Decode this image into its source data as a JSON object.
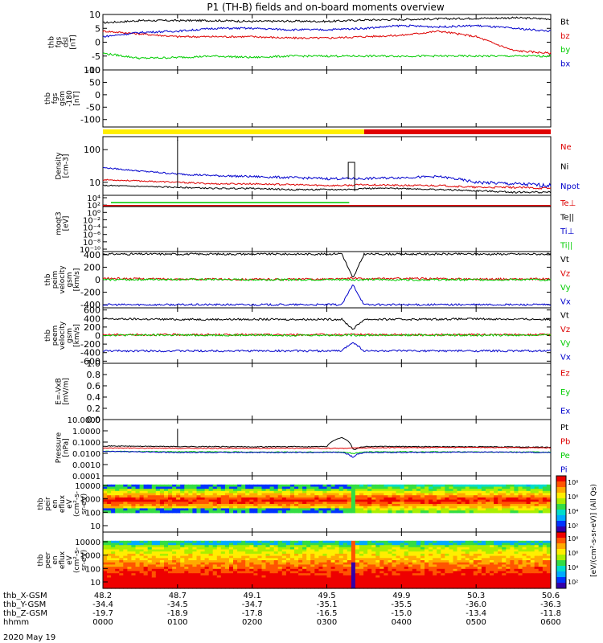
{
  "title": "P1 (TH-B) fields and on-board moments overview",
  "footer_date": "2020 May 19",
  "chart_data": [
    {
      "id": "fgs_dsl",
      "type": "line",
      "ylabel_lines": [
        "thb",
        "fgs",
        "dsl",
        "[nT]"
      ],
      "ylim": [
        -10,
        10
      ],
      "ticks": [
        10,
        5,
        0,
        -5,
        -10
      ],
      "x": [
        0,
        0.5,
        1,
        1.5,
        2,
        2.5,
        3,
        3.5,
        4,
        4.5,
        5,
        5.5,
        6
      ],
      "series": [
        {
          "name": "Bt",
          "color": "#000000",
          "values": [
            7,
            7.8,
            7.8,
            7.8,
            7.5,
            7.6,
            7.5,
            8,
            8.2,
            8.4,
            8.6,
            8.8,
            8.4
          ]
        },
        {
          "name": "bz",
          "color": "#dd0000",
          "values": [
            4,
            3,
            2,
            2,
            2,
            1.5,
            1.5,
            2,
            2.5,
            4,
            2,
            -3,
            -4
          ]
        },
        {
          "name": "by",
          "color": "#00cc00",
          "values": [
            -4,
            -5.8,
            -5.5,
            -5,
            -5.5,
            -5,
            -5,
            -5,
            -5,
            -5,
            -5,
            -5,
            -5
          ]
        },
        {
          "name": "bx",
          "color": "#0000cc",
          "values": [
            2,
            3.5,
            4,
            5,
            5,
            4.5,
            4.5,
            5,
            6,
            5.5,
            6,
            5,
            4
          ]
        }
      ]
    },
    {
      "id": "fgs_gsm",
      "type": "line",
      "ylabel_lines": [
        "thb",
        "fgs",
        "gsm",
        "-180",
        "[nT]"
      ],
      "ylim": [
        -130,
        100
      ],
      "ticks": [
        100,
        50,
        0,
        -50,
        -100
      ],
      "series": []
    },
    {
      "id": "mode_bar",
      "type": "bar",
      "segments": [
        {
          "from": "0000",
          "to": "0330",
          "color": "#ffee00"
        },
        {
          "from": "0330",
          "to": "0600",
          "color": "#e00000"
        }
      ]
    },
    {
      "id": "density",
      "type": "line",
      "log": true,
      "ylabel_lines": [
        "Density",
        "[cm-3]"
      ],
      "ylim": [
        4,
        250
      ],
      "ticks": [
        "100",
        "10"
      ],
      "x": [
        0,
        0.5,
        1,
        1.5,
        2,
        2.5,
        3,
        3.25,
        3.5,
        4,
        4.5,
        5,
        5.5,
        6
      ],
      "series": [
        {
          "name": "Ne",
          "color": "#dd0000",
          "values": [
            12,
            11,
            10,
            9,
            9,
            8.5,
            8,
            8,
            8.5,
            8,
            8,
            7,
            7,
            6.5
          ]
        },
        {
          "name": "Ni",
          "color": "#000000",
          "values": [
            8,
            7.5,
            7,
            6.5,
            6.5,
            6,
            6,
            6,
            6.5,
            6.5,
            6,
            5.5,
            5,
            5
          ]
        },
        {
          "name": "Npot",
          "color": "#0000cc",
          "values": [
            28,
            22,
            18,
            16,
            15,
            14,
            13,
            13,
            13,
            14,
            15,
            10,
            9,
            8
          ]
        }
      ],
      "spike": {
        "x": 1.0,
        "to": 200
      }
    },
    {
      "id": "moqt3",
      "type": "line",
      "log": true,
      "ylabel_lines": [
        "moqt3",
        "[eV]"
      ],
      "ticks": [
        "10⁴",
        "10²",
        "10⁰",
        "10⁻²",
        "10⁻⁴",
        "10⁻⁶",
        "10⁻⁸",
        "10⁻¹⁰"
      ],
      "series": [
        {
          "name": "Te⊥",
          "color": "#dd0000"
        },
        {
          "name": "Te||",
          "color": "#000000"
        },
        {
          "name": "Ti⊥",
          "color": "#0000cc"
        },
        {
          "name": "Ti||",
          "color": "#00cc00"
        }
      ]
    },
    {
      "id": "peim_velocity",
      "type": "line",
      "ylabel_lines": [
        "thb",
        "peim",
        "velocity",
        "gsm",
        "[km/s]"
      ],
      "ylim": [
        -450,
        450
      ],
      "ticks": [
        400,
        200,
        0,
        -200,
        -400
      ],
      "x": [
        0,
        1,
        2,
        3,
        3.2,
        3.35,
        3.5,
        4,
        5,
        6
      ],
      "series": [
        {
          "name": "Vt",
          "color": "#000000",
          "values": [
            410,
            410,
            410,
            410,
            420,
            20,
            410,
            410,
            410,
            410
          ]
        },
        {
          "name": "Vz",
          "color": "#dd0000",
          "values": [
            20,
            10,
            5,
            10,
            10,
            30,
            10,
            20,
            10,
            10
          ]
        },
        {
          "name": "Vy",
          "color": "#00cc00",
          "values": [
            0,
            5,
            0,
            0,
            0,
            0,
            0,
            0,
            0,
            0
          ]
        },
        {
          "name": "Vx",
          "color": "#0000cc",
          "values": [
            -400,
            -400,
            -400,
            -400,
            -400,
            -80,
            -400,
            -400,
            -400,
            -400
          ]
        }
      ]
    },
    {
      "id": "peem_velocity",
      "type": "line",
      "ylabel_lines": [
        "thb",
        "peem",
        "velocity",
        "gsm",
        "[km/s]"
      ],
      "ylim": [
        -650,
        650
      ],
      "ticks": [
        600,
        400,
        200,
        0,
        -200,
        -400,
        -600
      ],
      "x": [
        0,
        1,
        2,
        3,
        3.2,
        3.35,
        3.5,
        4,
        5,
        6
      ],
      "series": [
        {
          "name": "Vt",
          "color": "#000000",
          "values": [
            390,
            380,
            380,
            380,
            380,
            150,
            380,
            380,
            390,
            380
          ]
        },
        {
          "name": "Vz",
          "color": "#dd0000",
          "values": [
            20,
            20,
            20,
            20,
            20,
            30,
            20,
            20,
            20,
            20
          ]
        },
        {
          "name": "Vy",
          "color": "#00cc00",
          "values": [
            10,
            10,
            10,
            10,
            10,
            10,
            10,
            10,
            10,
            10
          ]
        },
        {
          "name": "Vx",
          "color": "#0000cc",
          "values": [
            -360,
            -360,
            -360,
            -360,
            -360,
            -150,
            -360,
            -360,
            -360,
            -360
          ]
        }
      ]
    },
    {
      "id": "efield",
      "type": "line",
      "ylabel_lines": [
        "E=-VxB",
        "[mV/m]"
      ],
      "ylim": [
        0,
        1
      ],
      "ticks": [
        "1.0",
        "0.8",
        "0.6",
        "0.4",
        "0.2",
        "0.0"
      ],
      "series": [
        {
          "name": "Ez",
          "color": "#dd0000"
        },
        {
          "name": "Ey",
          "color": "#00cc00"
        },
        {
          "name": "Ex",
          "color": "#0000cc"
        }
      ]
    },
    {
      "id": "pressure",
      "type": "line",
      "log": true,
      "ylabel_lines": [
        "Pressure",
        "[nPa]"
      ],
      "ticks": [
        "10.0000",
        "1.0000",
        "0.1000",
        "0.0100",
        "0.0010",
        "0.0001"
      ],
      "x": [
        0,
        1,
        2,
        3,
        3.2,
        3.35,
        3.5,
        4,
        5,
        6
      ],
      "series": [
        {
          "name": "Pt",
          "color": "#000000",
          "values": [
            0.045,
            0.04,
            0.038,
            0.04,
            0.25,
            0.02,
            0.04,
            0.04,
            0.038,
            0.035
          ]
        },
        {
          "name": "Pb",
          "color": "#dd0000",
          "values": [
            0.03,
            0.028,
            0.028,
            0.028,
            0.028,
            0.03,
            0.03,
            0.032,
            0.034,
            0.03
          ]
        },
        {
          "name": "Pe",
          "color": "#00cc00",
          "values": [
            0.015,
            0.014,
            0.013,
            0.013,
            0.013,
            0.01,
            0.013,
            0.014,
            0.013,
            0.013
          ]
        },
        {
          "name": "Pi",
          "color": "#0000cc",
          "values": [
            0.015,
            0.012,
            0.012,
            0.012,
            0.012,
            0.005,
            0.012,
            0.012,
            0.013,
            0.012
          ]
        }
      ],
      "spike": {
        "x": 1.0,
        "to": 1.5
      }
    },
    {
      "id": "peir_spectrogram",
      "type": "heatmap",
      "ylabel_lines": [
        "thb",
        "peir",
        "en",
        "eflux",
        "eV",
        "(cm²-s-",
        "sr-eV)"
      ],
      "ticks": [
        "10000",
        "1000",
        "100",
        "10"
      ]
    },
    {
      "id": "peer_spectrogram",
      "type": "heatmap",
      "ylabel_lines": [
        "thb",
        "peer",
        "en",
        "eflux",
        "eV",
        "(cm²-s-",
        "sr-eV)"
      ],
      "ticks": [
        "10000",
        "1000",
        "100",
        "10"
      ]
    }
  ],
  "colorbar": {
    "label": "[eV/(cm²-s-sr-eV)] (All Qs)",
    "ticks_top": [
      "10⁸",
      "10⁶",
      "10⁴",
      "10²"
    ],
    "ticks_bottom": [
      "10⁸",
      "10⁶",
      "10⁴",
      "10²"
    ]
  },
  "xaxis": {
    "row_labels": [
      "thb_X-GSM",
      "thb_Y-GSM",
      "thb_Z-GSM",
      "hhmm"
    ],
    "rows": [
      [
        "48.2",
        "48.7",
        "49.1",
        "49.5",
        "49.9",
        "50.3",
        "50.6"
      ],
      [
        "-34.4",
        "-34.5",
        "-34.7",
        "-35.1",
        "-35.5",
        "-36.0",
        "-36.3"
      ],
      [
        "-19.7",
        "-18.9",
        "-17.8",
        "-16.5",
        "-15.0",
        "-13.4",
        "-11.8"
      ],
      [
        "0000",
        "0100",
        "0200",
        "0300",
        "0400",
        "0500",
        "0600"
      ]
    ]
  }
}
